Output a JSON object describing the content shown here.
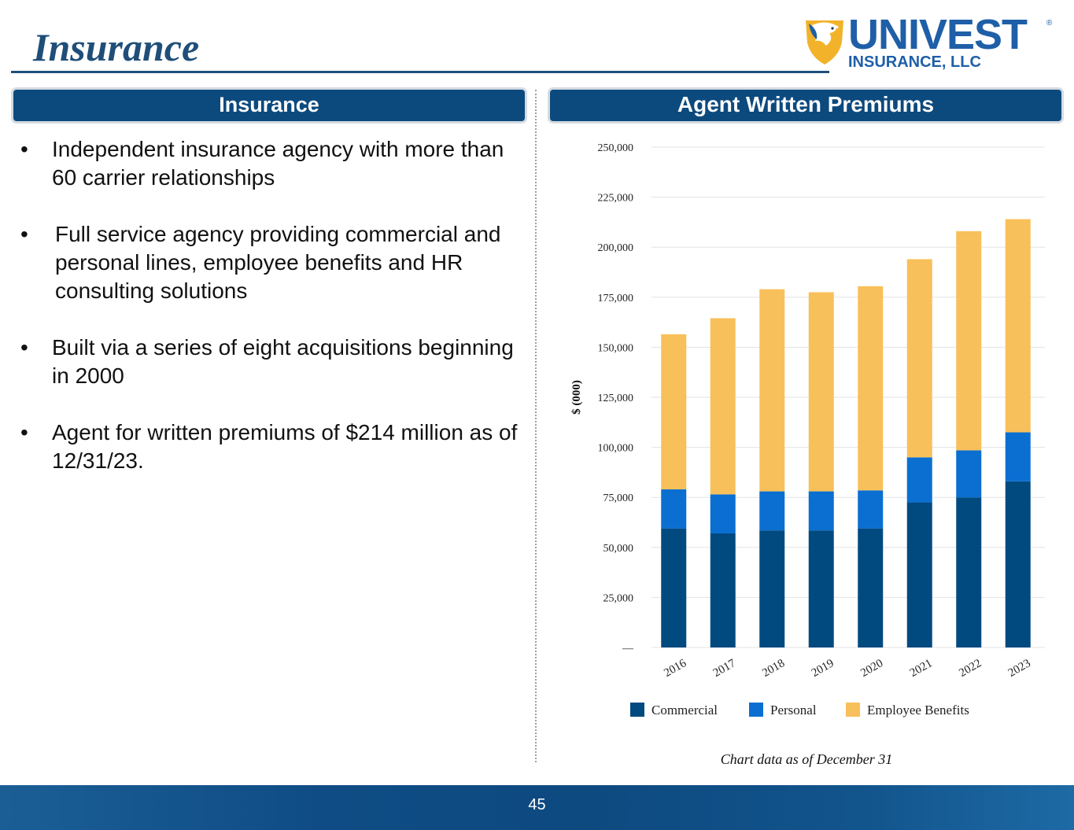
{
  "header": {
    "title": "Insurance"
  },
  "logo": {
    "name": "UNIVEST",
    "registered": "®",
    "subtitle": "INSURANCE, LLC"
  },
  "left_panel": {
    "heading": "Insurance",
    "bullet_char": "•",
    "bullets": [
      "Independent insurance agency with more than 60 carrier relationships",
      "Full service agency providing commercial and personal lines, employee benefits and HR consulting solutions",
      "Built via a series of eight acquisitions beginning in 2000",
      "Agent for written premiums of $214 million as of 12/31/23."
    ]
  },
  "right_panel": {
    "heading": "Agent Written Premiums",
    "caption": "Chart data as of December 31"
  },
  "chart_data": {
    "type": "bar",
    "stacked": true,
    "title": "Agent Written Premiums",
    "xlabel": "",
    "ylabel": "$ (000)",
    "ylim": [
      0,
      250000
    ],
    "yticks": [
      0,
      25000,
      50000,
      75000,
      100000,
      125000,
      150000,
      175000,
      200000,
      225000,
      250000
    ],
    "ytick_labels": [
      "—",
      "25,000",
      "50,000",
      "75,000",
      "100,000",
      "125,000",
      "150,000",
      "175,000",
      "200,000",
      "225,000",
      "250,000"
    ],
    "categories": [
      "2016",
      "2017",
      "2018",
      "2019",
      "2020",
      "2021",
      "2022",
      "2023"
    ],
    "series": [
      {
        "name": "Commercial",
        "color": "#004a80",
        "values": [
          59500,
          57000,
          58500,
          58500,
          59500,
          72500,
          75000,
          83000
        ]
      },
      {
        "name": "Personal",
        "color": "#0a6fd1",
        "values": [
          19500,
          19500,
          19500,
          19500,
          19000,
          22500,
          23500,
          24500
        ]
      },
      {
        "name": "Employee Benefits",
        "color": "#f8c05a",
        "values": [
          77500,
          88000,
          101000,
          99500,
          102000,
          99000,
          109500,
          106500
        ]
      }
    ],
    "legend_position": "bottom",
    "grid": true
  },
  "footer": {
    "page_number": "45"
  },
  "colors": {
    "brand_navy": "#1f4e79",
    "header_bg": "#0c4a7e",
    "logo_blue": "#1f5fa8",
    "logo_gold": "#f2b32a"
  }
}
